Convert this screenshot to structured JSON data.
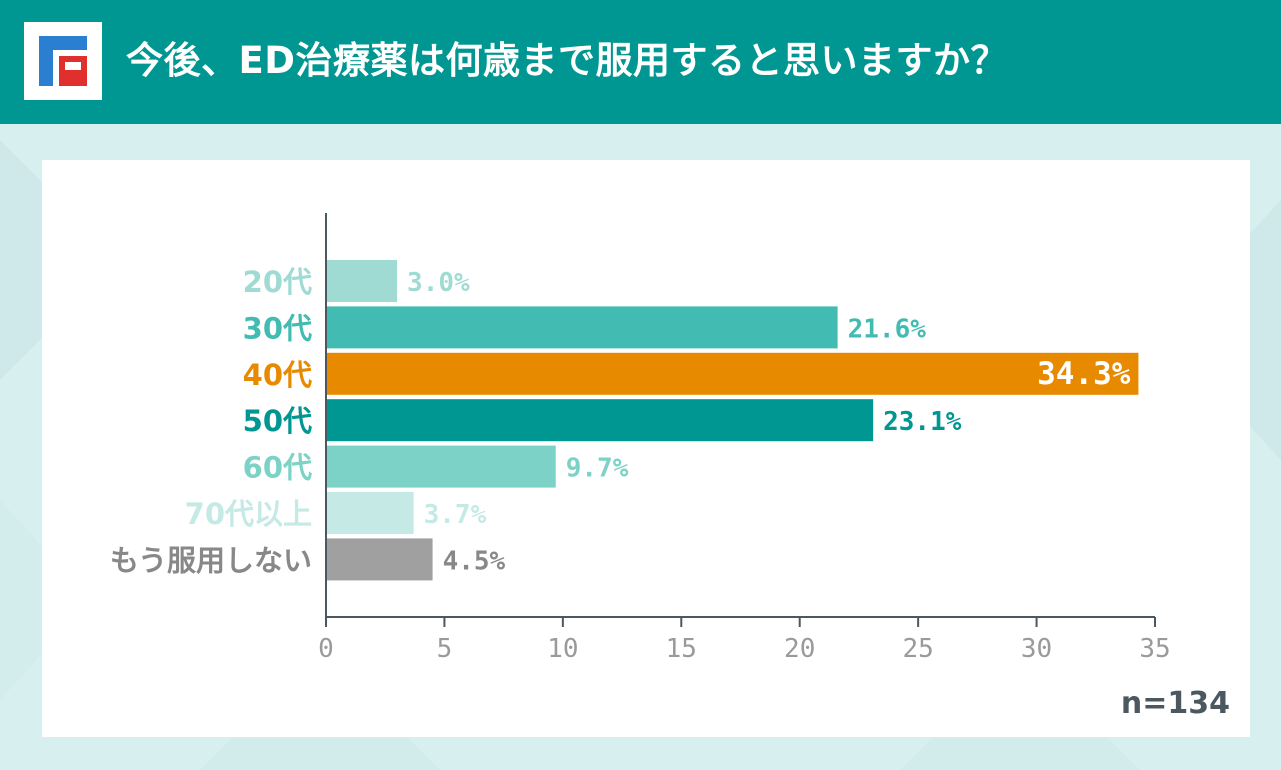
{
  "header": {
    "title": "今後、ED治療薬は何歳まで服用すると思いますか？",
    "logo_letter": "F"
  },
  "colors": {
    "header_bg": "#009692",
    "highlight": "#e88a00",
    "axis": "#4b5860"
  },
  "chart_data": {
    "type": "bar",
    "orientation": "horizontal",
    "title": "今後、ED治療薬は何歳まで服用すると思いますか？",
    "categories": [
      "20代",
      "30代",
      "40代",
      "50代",
      "60代",
      "70代以上",
      "もう服用しない"
    ],
    "values": [
      3.0,
      21.6,
      34.3,
      23.1,
      9.7,
      3.7,
      4.5
    ],
    "value_labels": [
      "3.0%",
      "21.6%",
      "34.3%",
      "23.1%",
      "9.7%",
      "3.7%",
      "4.5%"
    ],
    "bar_colors": [
      "#9fdbd3",
      "#42bcb2",
      "#e88a00",
      "#009692",
      "#7dd2c7",
      "#c5eae5",
      "#a0a0a0"
    ],
    "label_colors": [
      "#9fdbd3",
      "#42bcb2",
      "#e88a00",
      "#009692",
      "#7dd2c7",
      "#c5eae5",
      "#888888"
    ],
    "value_label_colors": [
      "#9fdbd3",
      "#42bcb2",
      "#ffffff",
      "#009692",
      "#7dd2c7",
      "#c5eae5",
      "#888888"
    ],
    "value_label_inside": [
      false,
      false,
      true,
      false,
      false,
      false,
      false
    ],
    "x_ticks": [
      0,
      5,
      10,
      15,
      20,
      25,
      30,
      35
    ],
    "xlim": [
      0,
      35
    ],
    "xlabel": "",
    "ylabel": "",
    "grid": false,
    "note": "n=134"
  }
}
